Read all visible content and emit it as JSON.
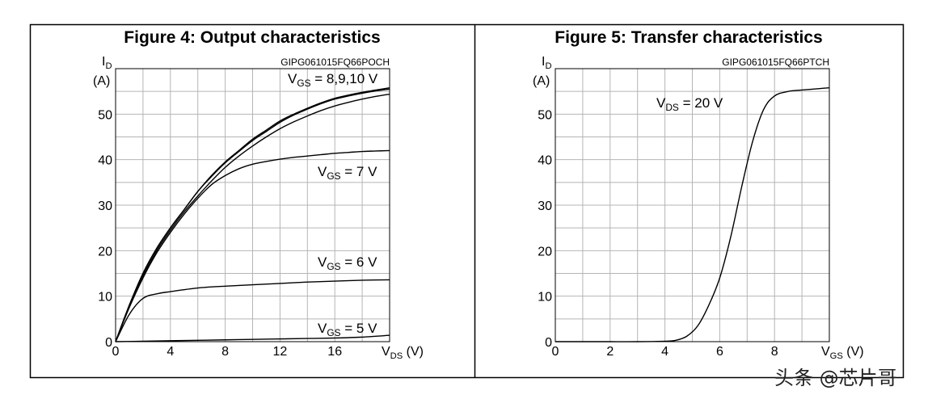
{
  "charts": [
    {
      "title": "Figure 4: Output characteristics",
      "code": "GIPG061015FQ66POCH",
      "ylabel_main": "I",
      "ylabel_sub": "D",
      "yunit": "(A)",
      "xlabel_main": "V",
      "xlabel_sub": "DS",
      "xunit": " (V)",
      "xticks": [
        "0",
        "4",
        "8",
        "12",
        "16"
      ],
      "yticks": [
        "0",
        "10",
        "20",
        "30",
        "40",
        "50"
      ],
      "annotations": [
        {
          "main": "V",
          "sub": "GS",
          "text": " = 8,9,10 V"
        },
        {
          "main": "V",
          "sub": "GS",
          "text": " = 7 V"
        },
        {
          "main": "V",
          "sub": "GS",
          "text": " = 6 V"
        },
        {
          "main": "V",
          "sub": "GS",
          "text": " = 5 V"
        }
      ]
    },
    {
      "title": "Figure 5: Transfer characteristics",
      "code": "GIPG061015FQ66PTCH",
      "ylabel_main": "I",
      "ylabel_sub": "D",
      "yunit": "(A)",
      "xlabel_main": "V",
      "xlabel_sub": "GS",
      "xunit": " (V)",
      "xticks": [
        "0",
        "2",
        "4",
        "6",
        "8"
      ],
      "yticks": [
        "0",
        "10",
        "20",
        "30",
        "40",
        "50"
      ],
      "annotations": [
        {
          "main": "V",
          "sub": "DS",
          "text": " = 20 V"
        }
      ]
    }
  ],
  "chart_data": [
    {
      "type": "line",
      "title": "Figure 4: Output characteristics",
      "xlabel": "VDS (V)",
      "ylabel": "ID (A)",
      "xlim": [
        0,
        20
      ],
      "ylim": [
        0,
        60
      ],
      "grid": true,
      "series": [
        {
          "name": "VGS = 10 V",
          "x": [
            0,
            1,
            2,
            3,
            4,
            5,
            6,
            7,
            8,
            9,
            10,
            11,
            12,
            13,
            14,
            15,
            16,
            17,
            18,
            19,
            20
          ],
          "values": [
            0,
            8,
            15,
            20.5,
            25,
            29,
            33,
            36.5,
            39.5,
            42,
            44.5,
            46.5,
            48.5,
            50,
            51.3,
            52.5,
            53.5,
            54.2,
            54.8,
            55.3,
            55.8
          ]
        },
        {
          "name": "VGS = 9 V",
          "x": [
            0,
            1,
            2,
            3,
            4,
            5,
            6,
            7,
            8,
            9,
            10,
            11,
            12,
            13,
            14,
            15,
            16,
            17,
            18,
            19,
            20
          ],
          "values": [
            0,
            8,
            15,
            20.5,
            25,
            29,
            33,
            36.3,
            39.3,
            41.8,
            44.2,
            46.2,
            48.2,
            49.8,
            51.1,
            52.3,
            53.3,
            54,
            54.6,
            55.1,
            55.5
          ]
        },
        {
          "name": "VGS = 8 V",
          "x": [
            0,
            1,
            2,
            3,
            4,
            5,
            6,
            7,
            8,
            9,
            10,
            11,
            12,
            13,
            14,
            15,
            16,
            17,
            18,
            19,
            20
          ],
          "values": [
            0,
            7.8,
            14.5,
            20,
            24.5,
            28.5,
            32,
            35.3,
            38.3,
            40.8,
            43,
            45,
            46.8,
            48.3,
            49.6,
            50.8,
            51.8,
            52.6,
            53.3,
            53.9,
            54.4
          ]
        },
        {
          "name": "VGS = 7 V",
          "x": [
            0,
            1,
            2,
            3,
            4,
            5,
            6,
            7,
            8,
            9,
            10,
            11,
            12,
            13,
            14,
            15,
            16,
            17,
            18,
            19,
            20
          ],
          "values": [
            0,
            7.5,
            14,
            19.5,
            24,
            28,
            31.5,
            34.5,
            36.5,
            38,
            39,
            39.6,
            40.1,
            40.5,
            40.8,
            41.1,
            41.4,
            41.6,
            41.8,
            41.9,
            42
          ]
        },
        {
          "name": "VGS = 6 V",
          "x": [
            0,
            1,
            2,
            3,
            4,
            6,
            8,
            10,
            12,
            14,
            16,
            18,
            20
          ],
          "values": [
            0,
            6,
            9.5,
            10.5,
            11,
            11.8,
            12.2,
            12.5,
            12.8,
            13.1,
            13.3,
            13.5,
            13.6
          ]
        },
        {
          "name": "VGS = 5 V",
          "x": [
            0,
            2,
            4,
            6,
            8,
            10,
            12,
            14,
            16,
            18,
            20
          ],
          "values": [
            0,
            0.1,
            0.2,
            0.3,
            0.4,
            0.5,
            0.6,
            0.7,
            0.8,
            1.0,
            1.4
          ]
        }
      ]
    },
    {
      "type": "line",
      "title": "Figure 5: Transfer characteristics",
      "xlabel": "VGS (V)",
      "ylabel": "ID (A)",
      "xlim": [
        0,
        10
      ],
      "ylim": [
        0,
        60
      ],
      "grid": true,
      "series": [
        {
          "name": "VDS = 20 V",
          "x": [
            0,
            1,
            2,
            3,
            4,
            4.4,
            4.8,
            5.2,
            5.6,
            6,
            6.4,
            6.8,
            7.2,
            7.6,
            8,
            8.5,
            9,
            10
          ],
          "values": [
            0,
            0,
            0,
            0,
            0.1,
            0.3,
            1.2,
            3.5,
            8,
            14,
            23,
            34,
            44,
            51,
            54,
            55,
            55.3,
            55.8
          ]
        }
      ]
    }
  ]
}
